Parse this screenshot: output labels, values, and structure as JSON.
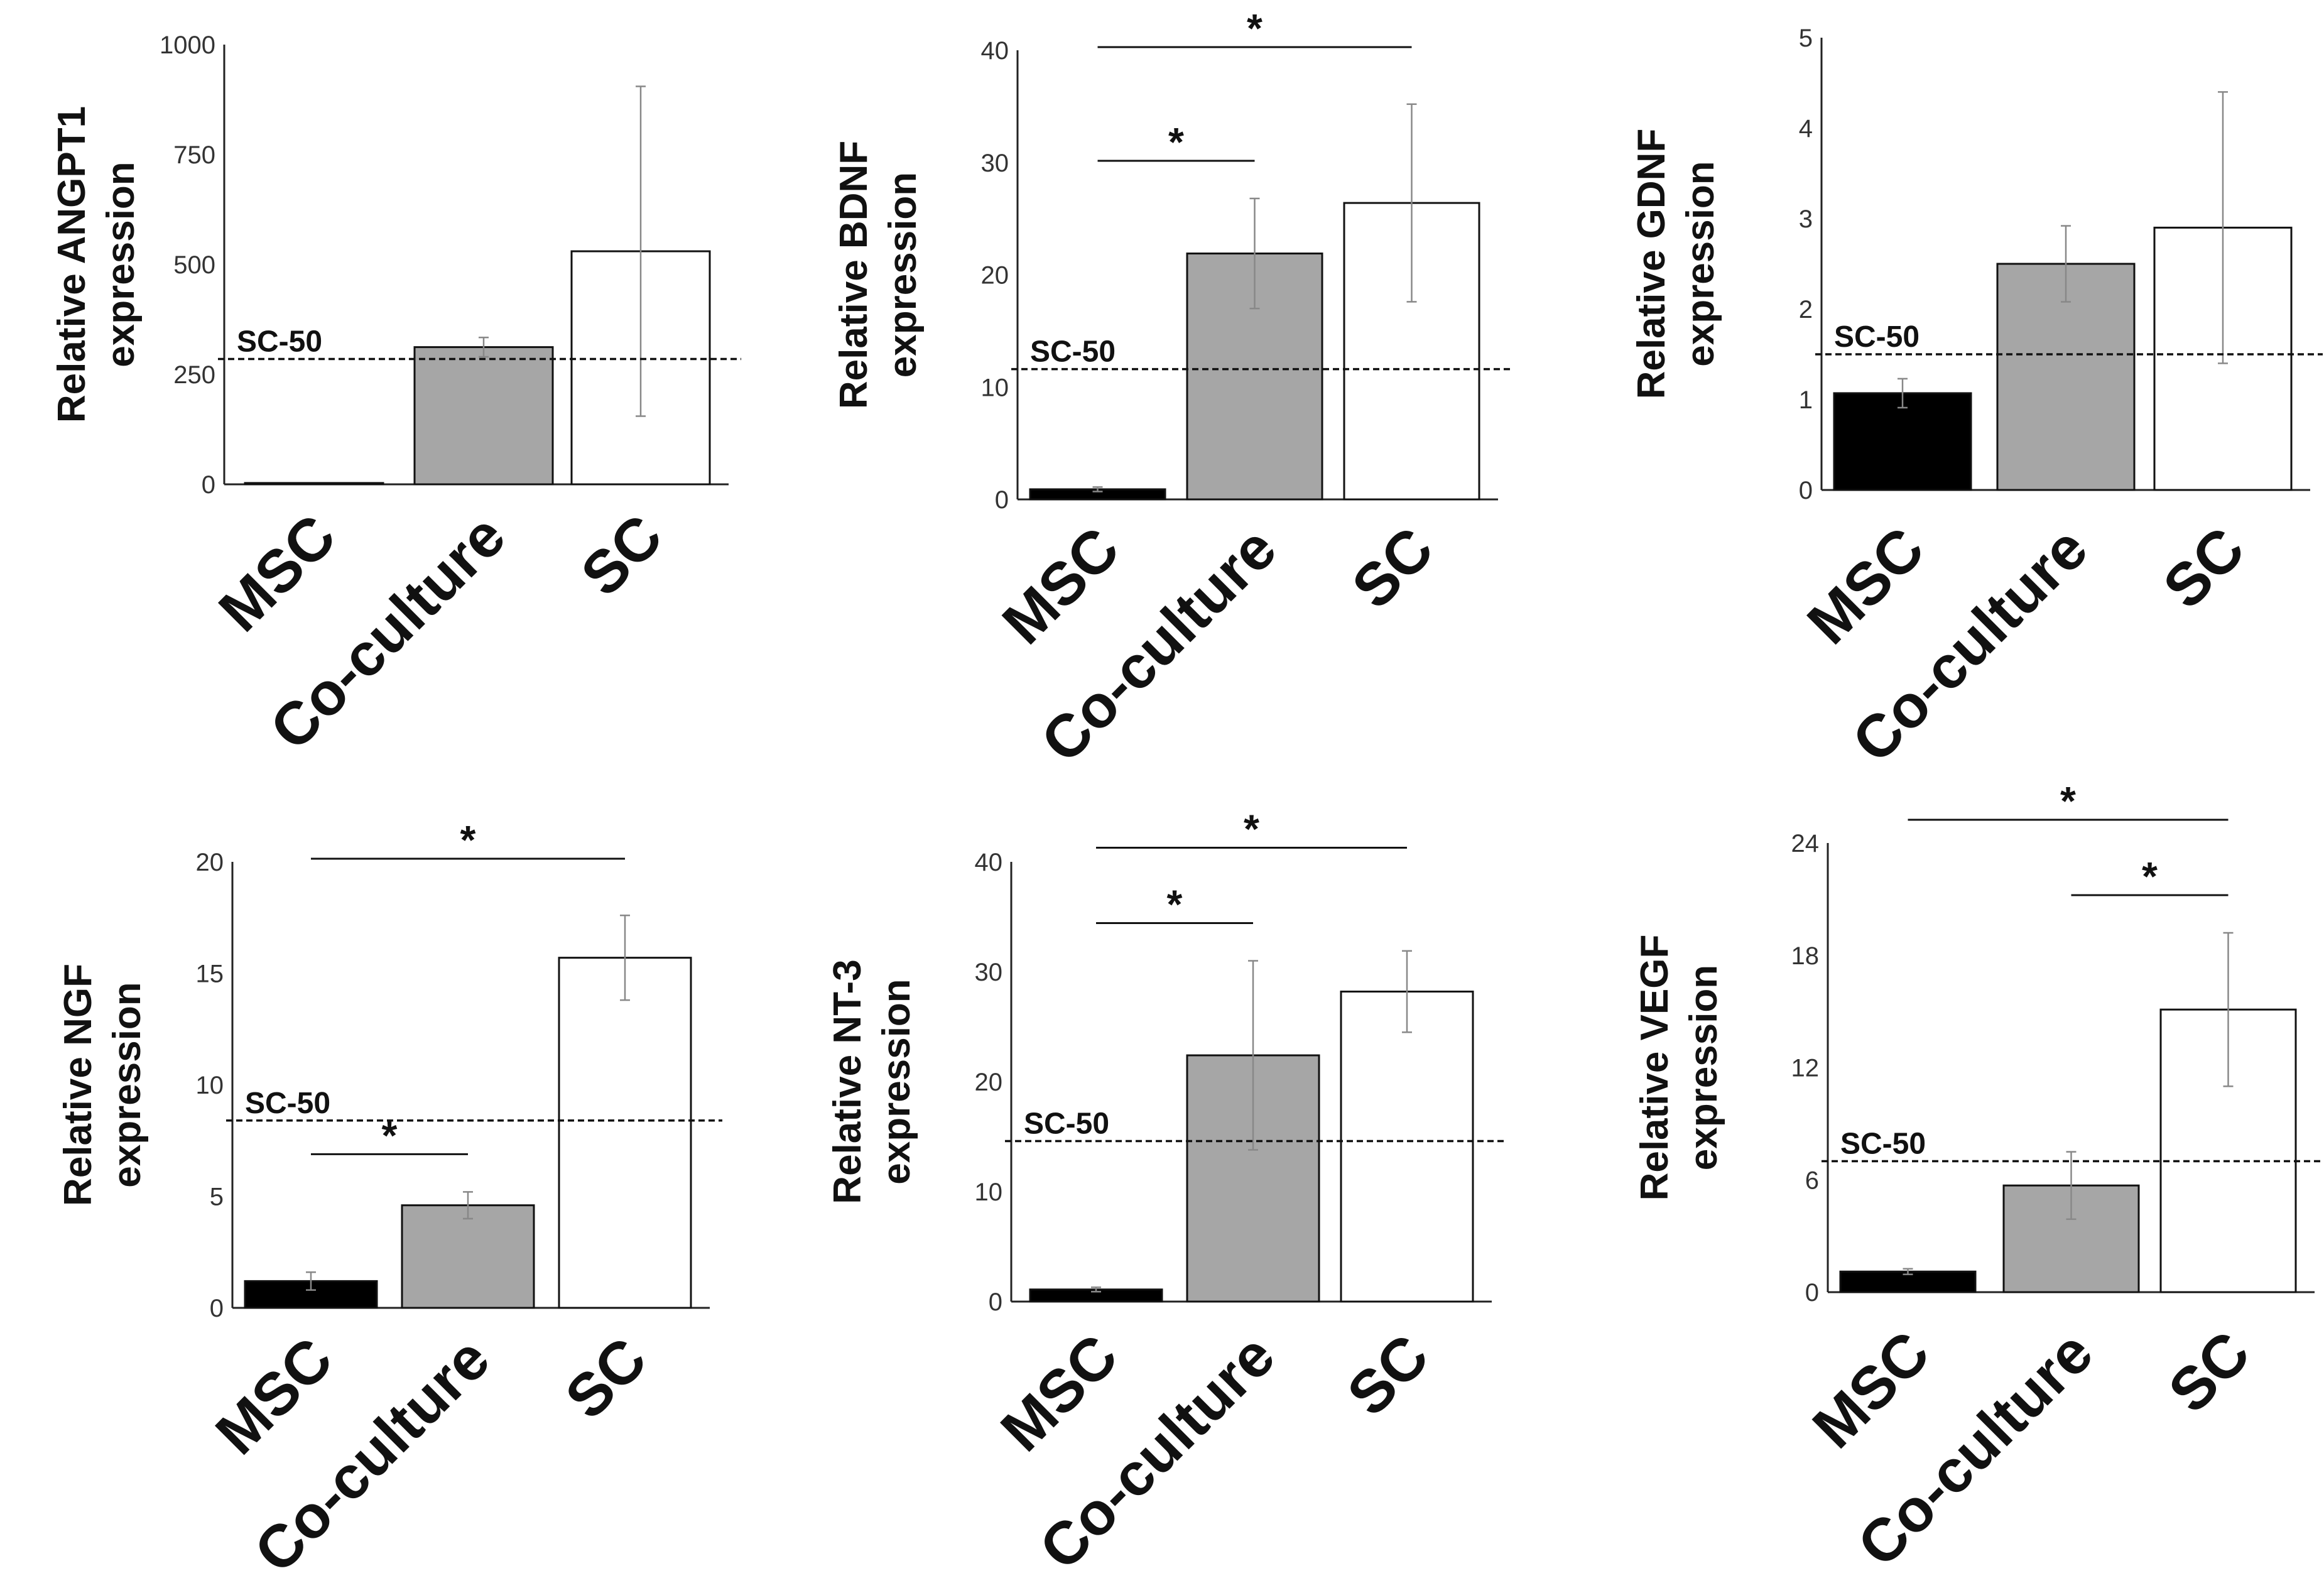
{
  "colors": {
    "MSC": "#000000",
    "Co-culture": "#a6a6a6",
    "SC": "#ffffff",
    "axis": "#222222",
    "error": "#888888"
  },
  "chart_data": [
    {
      "type": "bar",
      "ylabel_lines": [
        "Relative ANGPT1",
        "expression"
      ],
      "categories": [
        "MSC",
        "Co-culture",
        "SC"
      ],
      "values": [
        3,
        312,
        530
      ],
      "errors": [
        0,
        22,
        375
      ],
      "ylim": [
        0,
        1000
      ],
      "yticks": [
        0,
        250,
        500,
        750,
        1000
      ],
      "reference": {
        "label": "SC-50",
        "value": 285
      },
      "significance": []
    },
    {
      "type": "bar",
      "ylabel_lines": [
        "Relative BDNF",
        "expression"
      ],
      "categories": [
        "MSC",
        "Co-culture",
        "SC"
      ],
      "values": [
        0.9,
        21.9,
        26.4
      ],
      "errors": [
        0.2,
        4.9,
        8.8
      ],
      "ylim": [
        0,
        40
      ],
      "yticks": [
        0,
        10,
        20,
        30,
        40
      ],
      "reference": {
        "label": "SC-50",
        "value": 11.6
      },
      "significance": [
        {
          "from": 0,
          "to": 1,
          "label": "*"
        },
        {
          "from": 0,
          "to": 2,
          "label": "*"
        }
      ]
    },
    {
      "type": "bar",
      "ylabel_lines": [
        "Relative GDNF",
        "expression"
      ],
      "categories": [
        "MSC",
        "Co-culture",
        "SC"
      ],
      "values": [
        1.07,
        2.5,
        2.9
      ],
      "errors": [
        0.16,
        0.42,
        1.5
      ],
      "ylim": [
        0,
        5
      ],
      "yticks": [
        0,
        1,
        2,
        3,
        4,
        5
      ],
      "reference": {
        "label": "SC-50",
        "value": 1.5
      },
      "significance": []
    },
    {
      "type": "bar",
      "ylabel_lines": [
        "Relative NGF",
        "expression"
      ],
      "categories": [
        "MSC",
        "Co-culture",
        "SC"
      ],
      "values": [
        1.2,
        4.6,
        15.7
      ],
      "errors": [
        0.4,
        0.6,
        1.9
      ],
      "ylim": [
        0,
        20
      ],
      "yticks": [
        0,
        5,
        10,
        15,
        20
      ],
      "reference": {
        "label": "SC-50",
        "value": 8.4
      },
      "significance": [
        {
          "from": 0,
          "to": 1,
          "label": "*"
        },
        {
          "from": 0,
          "to": 2,
          "label": "*"
        }
      ]
    },
    {
      "type": "bar",
      "ylabel_lines": [
        "Relative NT-3",
        "expression"
      ],
      "categories": [
        "MSC",
        "Co-culture",
        "SC"
      ],
      "values": [
        1.1,
        22.4,
        28.2
      ],
      "errors": [
        0.2,
        8.6,
        3.7
      ],
      "ylim": [
        0,
        40
      ],
      "yticks": [
        0,
        10,
        20,
        30,
        40
      ],
      "reference": {
        "label": "SC-50",
        "value": 14.6
      },
      "significance": [
        {
          "from": 0,
          "to": 1,
          "label": "*"
        },
        {
          "from": 0,
          "to": 2,
          "label": "*"
        }
      ]
    },
    {
      "type": "bar",
      "ylabel_lines": [
        "Relative VEGF",
        "expression"
      ],
      "categories": [
        "MSC",
        "Co-culture",
        "SC"
      ],
      "values": [
        1.1,
        5.7,
        15.1
      ],
      "errors": [
        0.15,
        1.8,
        4.1
      ],
      "ylim": [
        0,
        24
      ],
      "yticks": [
        0,
        6,
        12,
        18,
        24
      ],
      "reference": {
        "label": "SC-50",
        "value": 7.0
      },
      "significance": [
        {
          "from": 1,
          "to": 2,
          "label": "*"
        },
        {
          "from": 0,
          "to": 2,
          "label": "*"
        }
      ]
    }
  ]
}
